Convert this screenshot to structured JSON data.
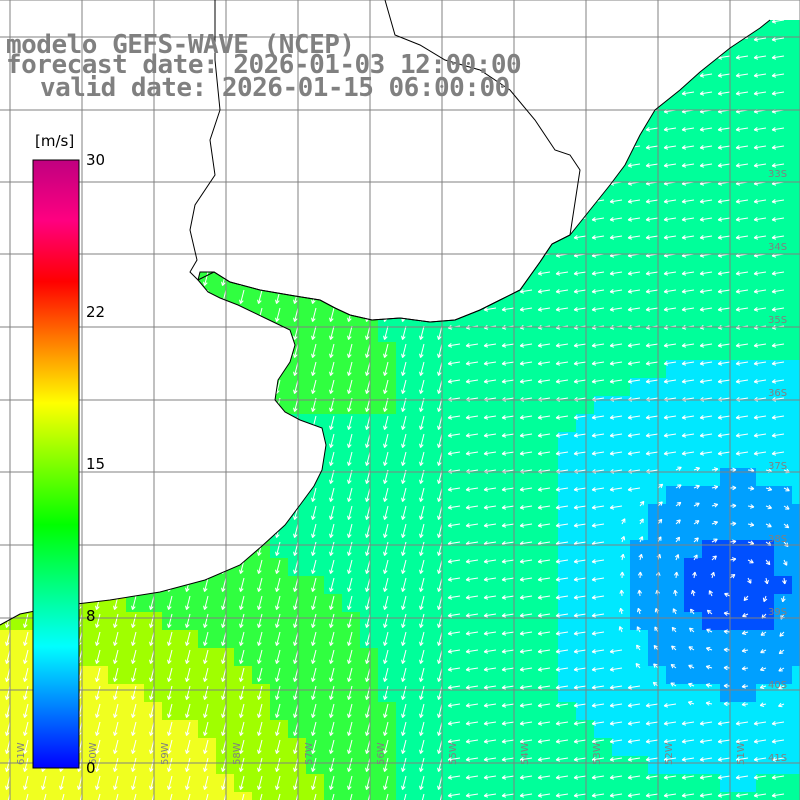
{
  "title": {
    "line1": "modelo GEFS-WAVE (NCEP)",
    "line2": "forecast date: 2026-01-03 12:00:00",
    "line3": "valid date: 2026-01-15 06:00:00"
  },
  "colorbar": {
    "unit": "[m/s]",
    "min": 0,
    "max": 30,
    "ticks": [
      "30",
      "22",
      "15",
      "8",
      "0"
    ],
    "colors": [
      "#0000ff",
      "#0080ff",
      "#00ffff",
      "#00ff80",
      "#00ff00",
      "#80ff00",
      "#ffff00",
      "#ff8000",
      "#ff0000",
      "#ff0080",
      "#c00080"
    ]
  },
  "map": {
    "region": "Rio de la Plata / South Atlantic",
    "land_color": "#ffffff",
    "grid_color": "#808080",
    "lat_labels": [
      "33S",
      "34S",
      "35S",
      "36S",
      "37S",
      "38S",
      "39S",
      "40S",
      "41S"
    ],
    "lon_labels": [
      "61W",
      "60W",
      "59W",
      "58W",
      "57W",
      "56W",
      "55W",
      "54W",
      "53W",
      "52W",
      "51W"
    ]
  }
}
